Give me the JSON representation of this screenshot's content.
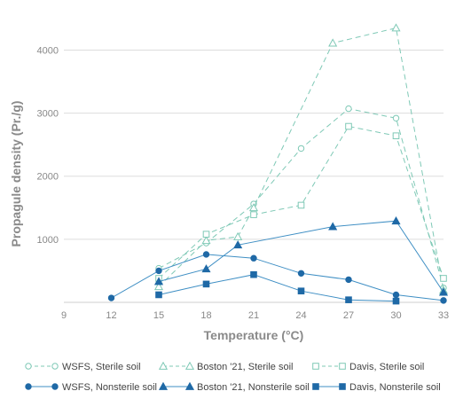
{
  "chart_data": {
    "type": "line",
    "title": "",
    "xlabel": "Temperature (°C)",
    "ylabel": "Propagule density (Pr./g)",
    "xlim": [
      9,
      33
    ],
    "ylim": [
      0,
      4400
    ],
    "xticks": [
      9,
      12,
      15,
      18,
      21,
      24,
      27,
      30,
      33
    ],
    "yticks": [
      1000,
      2000,
      3000,
      4000
    ],
    "grid": "horizontal",
    "legend_position": "bottom",
    "colors": {
      "sterile": "#7fc9b6",
      "nonsterile": "#3f8fc4",
      "nonsterile_marker": "#1f69a6"
    },
    "series": [
      {
        "name": "WSFS, Sterile soil",
        "style": "dashed",
        "marker": "circle-open",
        "points": [
          [
            15,
            540
          ],
          [
            18,
            940
          ],
          [
            21,
            1560
          ],
          [
            24,
            2440
          ],
          [
            27,
            3070
          ],
          [
            30,
            2920
          ],
          [
            33,
            230
          ]
        ]
      },
      {
        "name": "Boston '21, Sterile soil",
        "style": "dashed",
        "marker": "triangle-open",
        "points": [
          [
            15,
            250
          ],
          [
            18,
            980
          ],
          [
            20,
            1040
          ],
          [
            21,
            1500
          ],
          [
            26,
            4110
          ],
          [
            30,
            4350
          ],
          [
            33,
            190
          ]
        ]
      },
      {
        "name": "Davis, Sterile soil",
        "style": "dashed",
        "marker": "square-open",
        "points": [
          [
            15,
            380
          ],
          [
            18,
            1080
          ],
          [
            21,
            1390
          ],
          [
            24,
            1540
          ],
          [
            27,
            2790
          ],
          [
            30,
            2640
          ],
          [
            33,
            380
          ]
        ]
      },
      {
        "name": "WSFS, Nonsterile soil",
        "style": "solid",
        "marker": "circle-filled",
        "points": [
          [
            12,
            70
          ],
          [
            15,
            500
          ],
          [
            18,
            760
          ],
          [
            21,
            700
          ],
          [
            24,
            460
          ],
          [
            27,
            360
          ],
          [
            30,
            120
          ],
          [
            33,
            30
          ]
        ]
      },
      {
        "name": "Boston '21, Nonsterile soil",
        "style": "solid",
        "marker": "triangle-filled",
        "points": [
          [
            15,
            330
          ],
          [
            18,
            530
          ],
          [
            20,
            910
          ],
          [
            26,
            1200
          ],
          [
            30,
            1290
          ],
          [
            33,
            160
          ]
        ]
      },
      {
        "name": "Davis, Nonsterile soil",
        "style": "solid",
        "marker": "square-filled",
        "points": [
          [
            15,
            120
          ],
          [
            18,
            290
          ],
          [
            21,
            440
          ],
          [
            24,
            180
          ],
          [
            27,
            40
          ],
          [
            30,
            20
          ]
        ]
      }
    ]
  }
}
